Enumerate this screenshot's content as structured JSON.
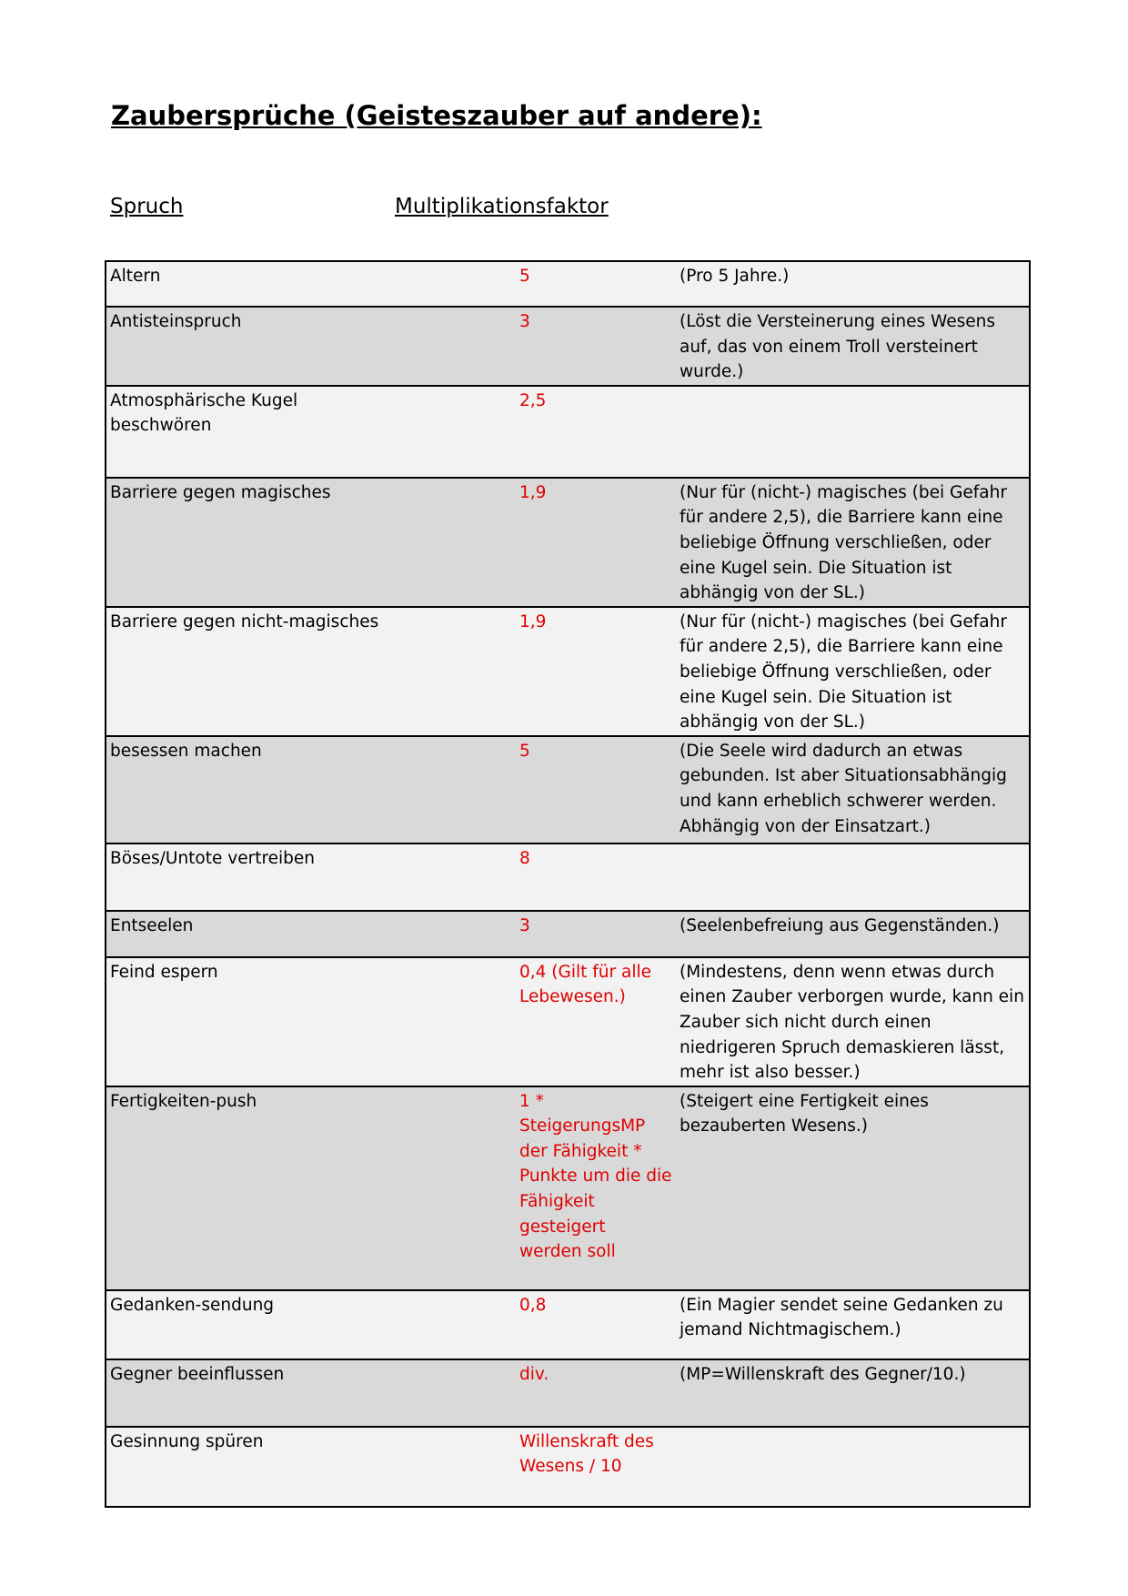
{
  "title": "Zaubersprüche (Geisteszauber auf andere):",
  "headers": {
    "spruch": "Spruch",
    "faktor": "Multiplikationsfaktor"
  },
  "colors": {
    "factor": "#e00000",
    "row_light": "#f2f2f2",
    "row_dark": "#d9d9d9"
  },
  "rows": [
    {
      "name": "Altern",
      "factor": "5",
      "note": "(Pro 5 Jahre.)"
    },
    {
      "name": "Antisteinspruch",
      "factor": "3",
      "note": "(Löst die Versteinerung eines Wesens auf, das von einem Troll versteinert wurde.)"
    },
    {
      "name": "Atmosphärische Kugel beschwören",
      "factor": "2,5",
      "note": ""
    },
    {
      "name": "Barriere gegen magisches",
      "factor": "1,9",
      "note": "(Nur für (nicht-) magisches (bei Gefahr für andere 2,5), die Barriere kann eine beliebige Öffnung verschließen, oder eine Kugel sein. Die Situation ist abhängig von der SL.)"
    },
    {
      "name": "Barriere gegen nicht-magisches",
      "factor": "1,9",
      "note": "(Nur für (nicht-) magisches (bei Gefahr für andere 2,5), die Barriere kann eine beliebige Öffnung verschließen, oder eine Kugel sein. Die Situation ist abhängig von der SL.)"
    },
    {
      "name": "besessen machen",
      "factor": "5",
      "note": "(Die Seele wird dadurch an etwas gebunden. Ist aber Situationsabhängig und kann erheblich schwerer werden. Abhängig von der Einsatzart.)"
    },
    {
      "name": "Böses/Untote vertreiben",
      "factor": "8",
      "note": ""
    },
    {
      "name": "Entseelen",
      "factor": "3",
      "note": "(Seelenbefreiung aus Gegenständen.)"
    },
    {
      "name": "Feind espern",
      "factor": "0,4 (Gilt für alle Lebewesen.)",
      "note": "(Mindestens, denn wenn etwas durch einen Zauber verborgen wurde, kann ein Zauber sich nicht durch einen niedrigeren Spruch demaskieren lässt, mehr ist also besser.)"
    },
    {
      "name": "Fertigkeiten-push",
      "factor": "1 * SteigerungsMP der Fähigkeit * Punkte um die die Fähigkeit gesteigert werden soll",
      "note": "(Steigert eine Fertigkeit eines bezauberten Wesens.)"
    },
    {
      "name": "Gedanken-sendung",
      "factor": "0,8",
      "note": "(Ein Magier sendet seine Gedanken zu jemand Nichtmagischem.)"
    },
    {
      "name": "Gegner beeinflussen",
      "factor": "div.",
      "note": "(MP=Willenskraft des Gegner/10.)"
    },
    {
      "name": "Gesinnung spüren",
      "factor": "Willenskraft des Wesens / 10",
      "note": ""
    }
  ]
}
